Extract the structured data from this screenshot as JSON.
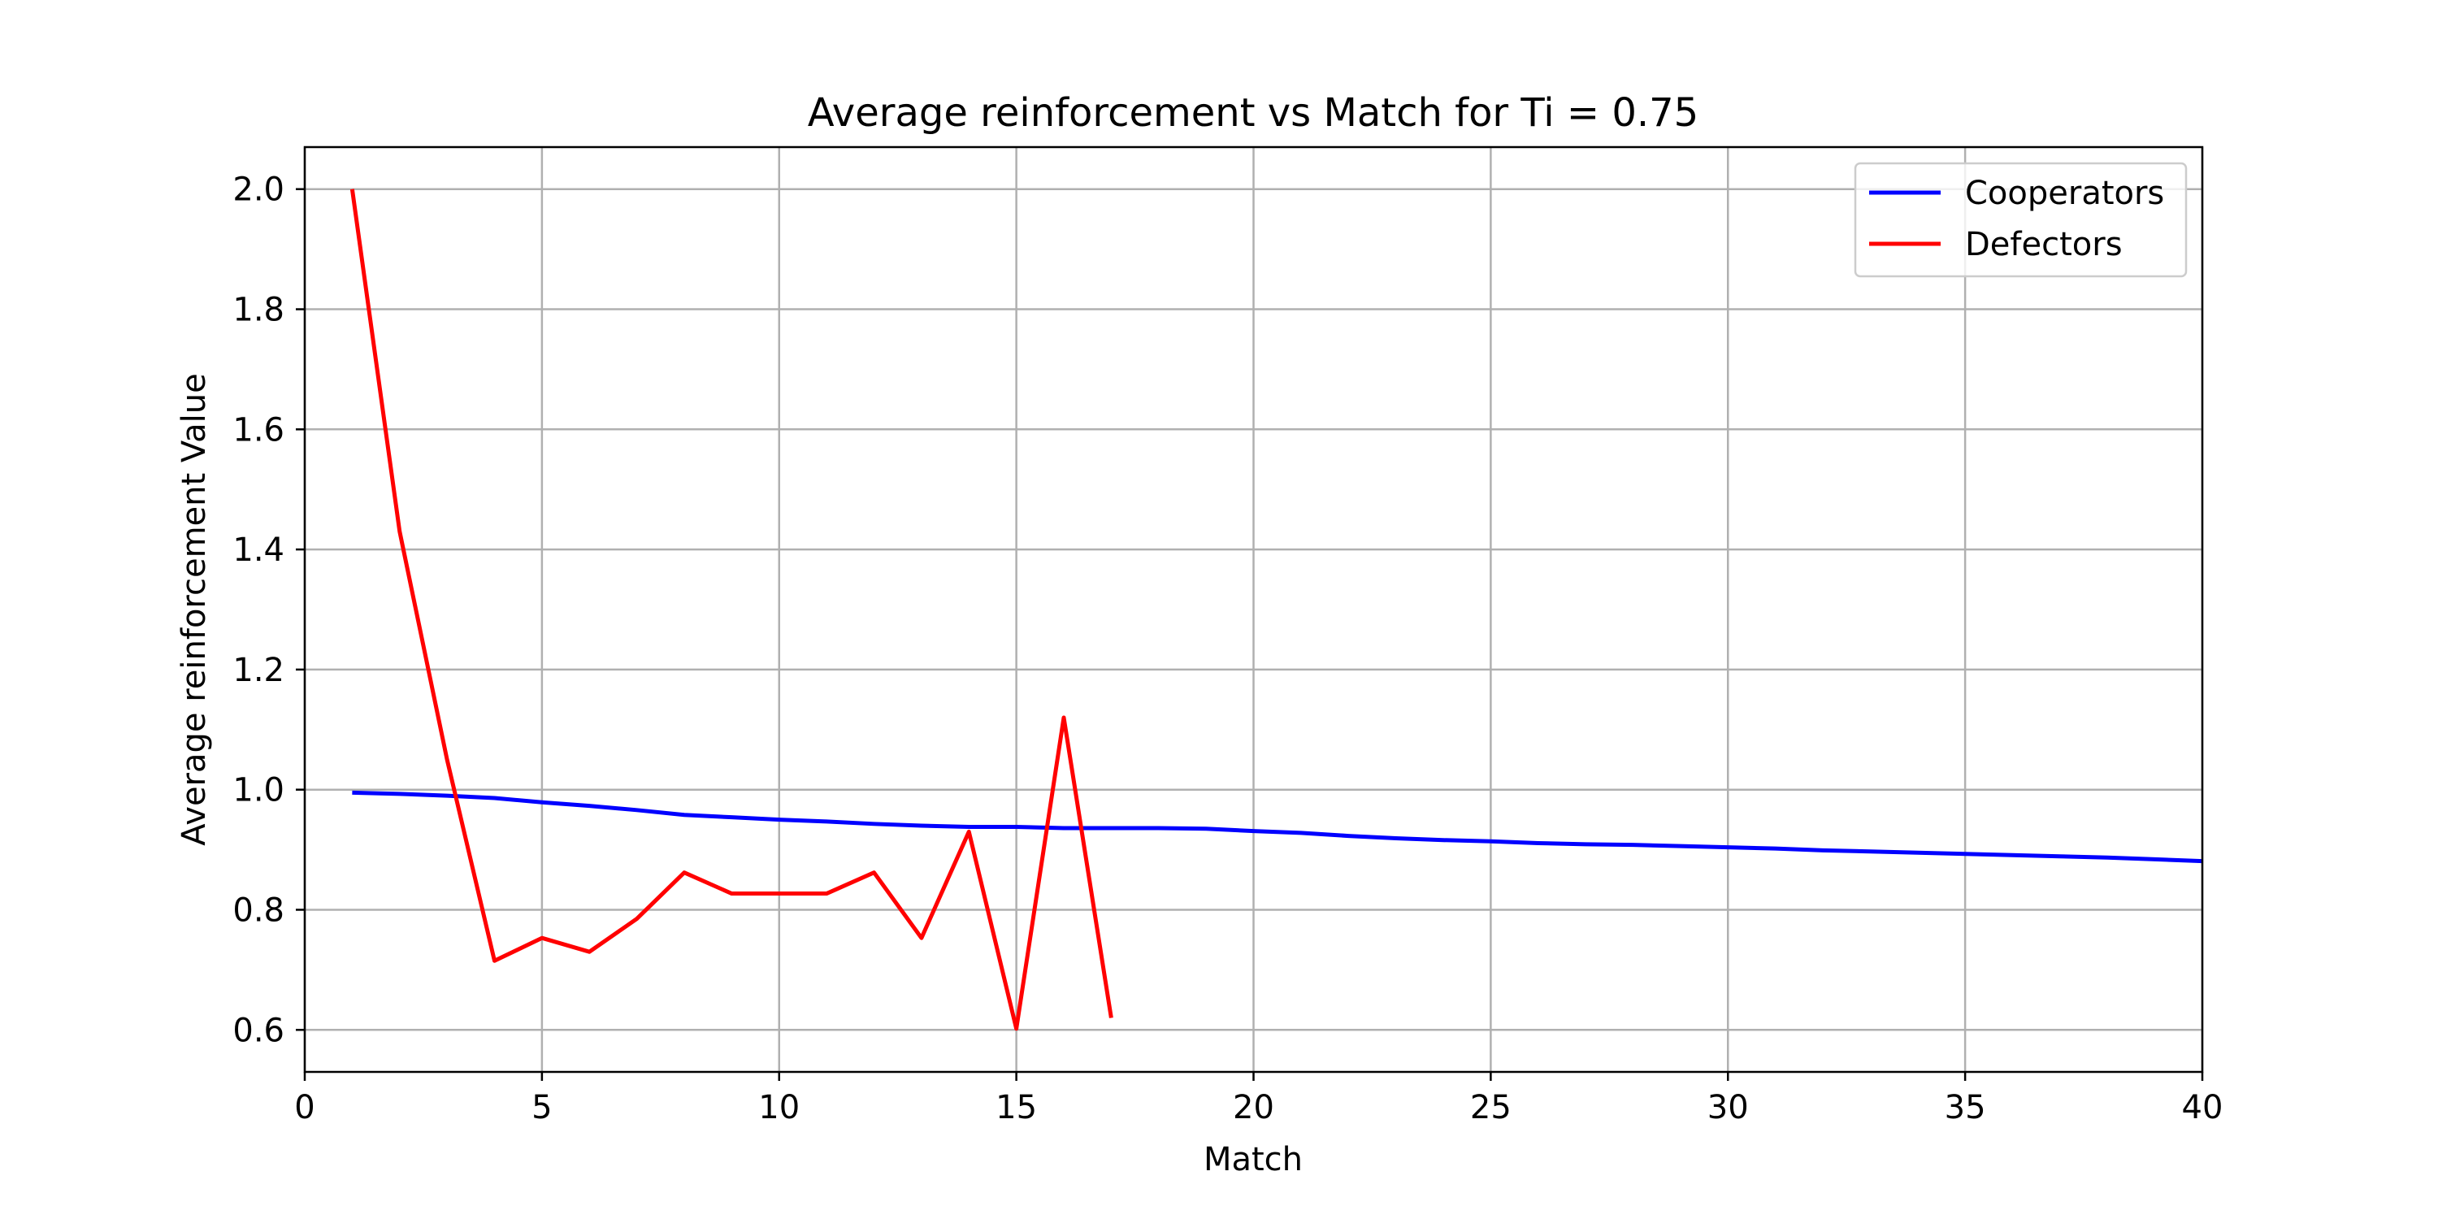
{
  "chart_data": {
    "type": "line",
    "title": "Average reinforcement vs Match for Ti = 0.75",
    "xlabel": "Match",
    "ylabel": "Average reinforcement Value",
    "xlim": [
      0,
      40
    ],
    "ylim": [
      0.53,
      2.07
    ],
    "xticks": [
      0,
      5,
      10,
      15,
      20,
      25,
      30,
      35,
      40
    ],
    "yticks": [
      0.6,
      0.8,
      1.0,
      1.2,
      1.4,
      1.6,
      1.8,
      2.0
    ],
    "xtick_labels": [
      "0",
      "5",
      "10",
      "15",
      "20",
      "25",
      "30",
      "35",
      "40"
    ],
    "ytick_labels": [
      "0.6",
      "0.8",
      "1.0",
      "1.2",
      "1.4",
      "1.6",
      "1.8",
      "2.0"
    ],
    "grid": true,
    "legend": "top-right",
    "series": [
      {
        "name": "Cooperators",
        "color": "#0000ff",
        "x": [
          1,
          2,
          3,
          4,
          5,
          6,
          7,
          8,
          9,
          10,
          11,
          12,
          13,
          14,
          15,
          16,
          17,
          18,
          19,
          20,
          21,
          22,
          23,
          24,
          25,
          26,
          27,
          28,
          29,
          30,
          31,
          32,
          33,
          34,
          35,
          36,
          37,
          38,
          39,
          40
        ],
        "y": [
          0.995,
          0.993,
          0.99,
          0.986,
          0.979,
          0.973,
          0.966,
          0.958,
          0.954,
          0.95,
          0.947,
          0.943,
          0.94,
          0.938,
          0.938,
          0.936,
          0.936,
          0.936,
          0.935,
          0.931,
          0.928,
          0.923,
          0.919,
          0.916,
          0.914,
          0.911,
          0.909,
          0.908,
          0.906,
          0.904,
          0.902,
          0.899,
          0.897,
          0.895,
          0.893,
          0.891,
          0.889,
          0.887,
          0.884,
          0.881
        ]
      },
      {
        "name": "Defectors",
        "color": "#ff0000",
        "x": [
          1,
          2,
          3,
          4,
          5,
          6,
          7,
          8,
          9,
          10,
          11,
          12,
          13,
          14,
          15,
          16,
          17
        ],
        "y": [
          2.0,
          1.43,
          1.05,
          0.715,
          0.753,
          0.73,
          0.785,
          0.862,
          0.827,
          0.827,
          0.827,
          0.862,
          0.753,
          0.93,
          0.602,
          1.12,
          0.62
        ]
      }
    ]
  }
}
